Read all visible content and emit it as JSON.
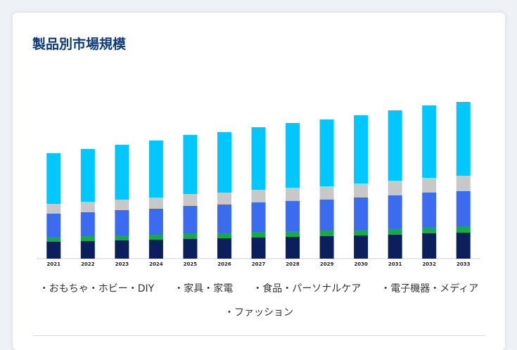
{
  "chart_data": {
    "type": "stacked-bar",
    "title": "製品別市場規模",
    "categories": [
      "2021",
      "2022",
      "2023",
      "2024",
      "2025",
      "2026",
      "2027",
      "2028",
      "2029",
      "2030",
      "2031",
      "2032",
      "2033"
    ],
    "series": [
      {
        "name": "おもちゃ・ホビー・DIY",
        "color": "#0a1f5c",
        "values": [
          24,
          25,
          26,
          27,
          28,
          29,
          30,
          31,
          32,
          33,
          34,
          36,
          37
        ]
      },
      {
        "name": "家具・家電",
        "color": "#1aa84f",
        "values": [
          7,
          7,
          7,
          7,
          8,
          8,
          8,
          8,
          8,
          8,
          9,
          9,
          9
        ]
      },
      {
        "name": "食品・パーソナルケア",
        "color": "#3b6cf0",
        "values": [
          33,
          34,
          36,
          37,
          39,
          40,
          42,
          43,
          44,
          46,
          47,
          49,
          50
        ]
      },
      {
        "name": "電子機器・メディア",
        "color": "#c8c8c8",
        "values": [
          14,
          15,
          15,
          16,
          17,
          17,
          18,
          19,
          19,
          20,
          21,
          21,
          22
        ]
      },
      {
        "name": "ファッション",
        "color": "#00c8ff",
        "values": [
          72,
          75,
          78,
          81,
          84,
          86,
          89,
          92,
          95,
          97,
          100,
          103,
          105
        ]
      }
    ],
    "ylim": [
      0,
      250
    ]
  }
}
